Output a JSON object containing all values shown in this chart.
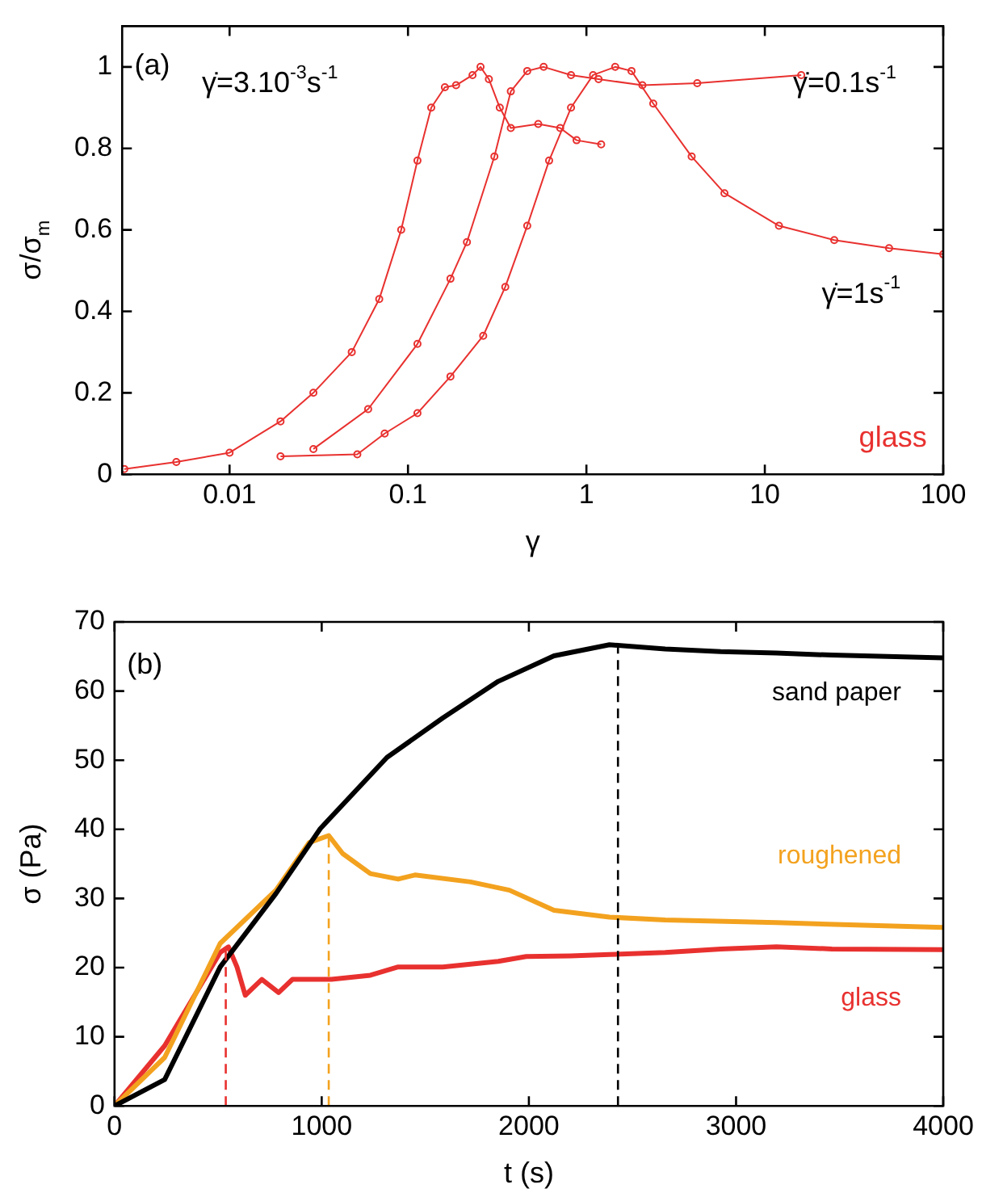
{
  "chart_data": [
    {
      "type": "line",
      "xlabel": "γ",
      "ylabel": "σ/σ$_{m}$",
      "log": "x",
      "xlim": [
        0.0025,
        100
      ],
      "ylim": [
        0,
        1.1
      ],
      "xticks": [
        0.01,
        0.1,
        1,
        10,
        100
      ],
      "yticks": [
        0,
        0.2,
        0.4,
        0.6,
        0.8,
        1.0
      ],
      "marker": "circle",
      "line_style": "solid",
      "grid": false,
      "annotations": [
        "(a)",
        "glass",
        "γ̇=3.10$^{-3}$s$^{-1}$",
        "γ̇=0.1s$^{-1}$",
        "γ̇=1s$^{-1}$"
      ],
      "series": [
        {
          "color": "#e8312f",
          "x": [
            0.00257,
            0.00503,
            0.01,
            0.0193,
            0.0295,
            0.0484,
            0.069,
            0.0916,
            0.113,
            0.135,
            0.161,
            0.186,
            0.23,
            0.255,
            0.284,
            0.327,
            0.377,
            0.537,
            0.713,
            0.881,
            1.21
          ],
          "values": [
            0.013,
            0.03,
            0.053,
            0.13,
            0.2,
            0.3,
            0.43,
            0.6,
            0.77,
            0.9,
            0.95,
            0.955,
            0.98,
            1.0,
            0.97,
            0.9,
            0.85,
            0.86,
            0.85,
            0.82,
            0.81
          ]
        },
        {
          "color": "#e8312f",
          "x": [
            0.0295,
            0.0598,
            0.113,
            0.173,
            0.214,
            0.305,
            0.377,
            0.466,
            0.576,
            0.82,
            1.17,
            2.06,
            4.18,
            16.0
          ],
          "values": [
            0.062,
            0.16,
            0.32,
            0.48,
            0.57,
            0.78,
            0.94,
            0.99,
            1.0,
            0.98,
            0.97,
            0.955,
            0.96,
            0.98
          ]
        },
        {
          "color": "#e8312f",
          "x": [
            0.0193,
            0.052,
            0.074,
            0.113,
            0.173,
            0.264,
            0.351,
            0.466,
            0.618,
            0.82,
            1.09,
            1.45,
            1.79,
            2.37,
            3.89,
            5.94,
            12.0,
            24.5,
            49.7,
            100
          ],
          "values": [
            0.044,
            0.049,
            0.1,
            0.15,
            0.24,
            0.34,
            0.46,
            0.61,
            0.77,
            0.9,
            0.98,
            1.0,
            0.99,
            0.91,
            0.78,
            0.69,
            0.61,
            0.575,
            0.555,
            0.54
          ]
        }
      ]
    },
    {
      "type": "line",
      "xlabel": "t (s)",
      "ylabel": "σ (Pa)",
      "xlim": [
        0,
        4000
      ],
      "ylim": [
        0,
        70
      ],
      "xticks": [
        0,
        1000,
        2000,
        3000,
        4000
      ],
      "yticks": [
        0,
        10,
        20,
        30,
        40,
        50,
        60,
        70
      ],
      "marker": "none",
      "line_style": "solid",
      "legend": "right",
      "grid": false,
      "annotations": [
        "(b)"
      ],
      "ref_lines": [
        {
          "axis": "x",
          "value": 537,
          "color": "#e8312f",
          "line_style": "dashed"
        },
        {
          "axis": "x",
          "value": 1034,
          "color": "#f3a21f",
          "line_style": "dashed"
        },
        {
          "axis": "x",
          "value": 2430,
          "color": "#000000",
          "line_style": "dashed"
        }
      ],
      "series": [
        {
          "name": "sand paper",
          "color": "#000000",
          "x": [
            0,
            242,
            510,
            779,
            993,
            1315,
            1584,
            1852,
            2121,
            2389,
            2658,
            2926,
            3195,
            3463,
            4000
          ],
          "values": [
            0,
            3.8,
            20.1,
            30.7,
            40.1,
            50.4,
            56.1,
            61.4,
            65.1,
            66.7,
            66.1,
            65.7,
            65.5,
            65.2,
            64.8
          ]
        },
        {
          "name": "roughened",
          "color": "#f3a21f",
          "x": [
            0,
            242,
            510,
            779,
            940,
            1034,
            1101,
            1235,
            1369,
            1450,
            1718,
            1906,
            2121,
            2389,
            2658,
            3195,
            4000
          ],
          "values": [
            0,
            7.0,
            23.5,
            31.2,
            38.1,
            39.1,
            36.5,
            33.6,
            32.8,
            33.4,
            32.4,
            31.2,
            28.3,
            27.3,
            26.9,
            26.5,
            25.8
          ]
        },
        {
          "name": "glass",
          "color": "#e8312f",
          "x": [
            0,
            242,
            510,
            550,
            591,
            631,
            711,
            792,
            859,
            1047,
            1235,
            1369,
            1584,
            1852,
            1987,
            2201,
            2389,
            2658,
            2926,
            3195,
            3463,
            4000
          ],
          "values": [
            0,
            8.7,
            22.2,
            23.0,
            20.1,
            16.0,
            18.3,
            16.4,
            18.3,
            18.3,
            18.9,
            20.1,
            20.1,
            20.9,
            21.6,
            21.7,
            21.9,
            22.2,
            22.7,
            23.0,
            22.7,
            22.6
          ]
        }
      ]
    }
  ]
}
